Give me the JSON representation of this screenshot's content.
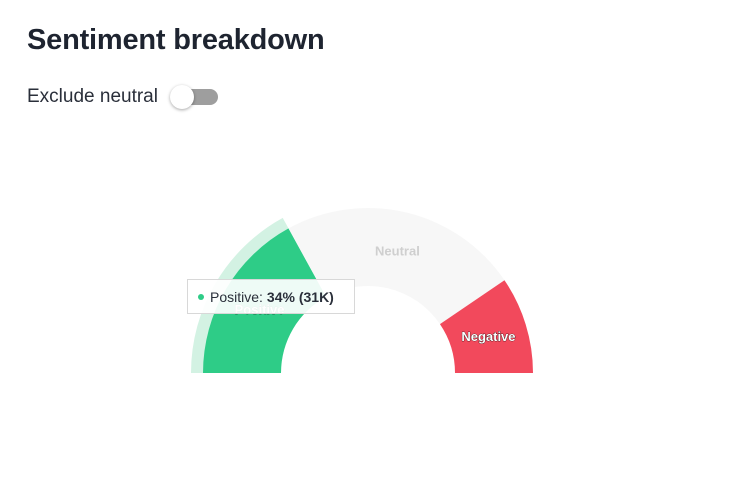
{
  "header": {
    "title": "Sentiment breakdown"
  },
  "controls": {
    "exclude_neutral_label": "Exclude neutral",
    "exclude_neutral_on": false
  },
  "colors": {
    "positive": "#2ecc87",
    "positive_halo": "#d3f2e3",
    "neutral": "#f7f7f7",
    "negative": "#f2495c",
    "toggle_track": "#9e9e9e"
  },
  "chart_data": {
    "type": "pie",
    "variant": "semicircle-gauge",
    "categories": [
      "Positive",
      "Neutral",
      "Negative"
    ],
    "values": [
      34,
      47,
      19
    ],
    "unit": "%",
    "labels": [
      "Positive",
      "Neutral",
      "Negative"
    ],
    "hovered": "Positive"
  },
  "tooltip": {
    "label": "Positive:",
    "value": "34% (31K)"
  }
}
